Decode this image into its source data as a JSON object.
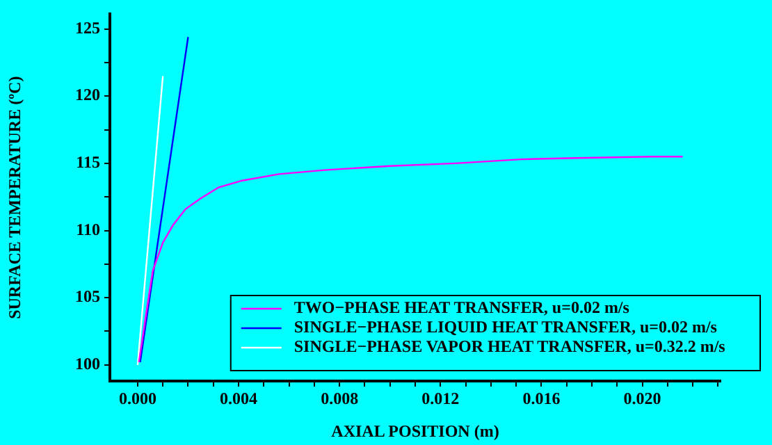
{
  "chart_data": {
    "type": "line",
    "xlabel": "AXIAL POSITION (m)",
    "ylabel": "SURFACE TEMPERATURE (ºC)",
    "xlim": [
      -0.0011,
      0.0231
    ],
    "ylim": [
      98.8,
      126.1
    ],
    "xticks": [
      {
        "value": 0,
        "label": "0.000"
      },
      {
        "value": 0.001,
        "label": null
      },
      {
        "value": 0.002,
        "label": null
      },
      {
        "value": 0.003,
        "label": null
      },
      {
        "value": 0.004,
        "label": "0.004"
      },
      {
        "value": 0.005,
        "label": null
      },
      {
        "value": 0.006,
        "label": null
      },
      {
        "value": 0.007,
        "label": null
      },
      {
        "value": 0.008,
        "label": "0.008"
      },
      {
        "value": 0.009,
        "label": null
      },
      {
        "value": 0.01,
        "label": null
      },
      {
        "value": 0.011,
        "label": null
      },
      {
        "value": 0.012,
        "label": "0.012"
      },
      {
        "value": 0.013,
        "label": null
      },
      {
        "value": 0.014,
        "label": null
      },
      {
        "value": 0.015,
        "label": null
      },
      {
        "value": 0.016,
        "label": "0.016"
      },
      {
        "value": 0.017,
        "label": null
      },
      {
        "value": 0.018,
        "label": null
      },
      {
        "value": 0.019,
        "label": null
      },
      {
        "value": 0.02,
        "label": "0.020"
      },
      {
        "value": 0.021,
        "label": null
      },
      {
        "value": 0.022,
        "label": null
      },
      {
        "value": 0.023,
        "label": null
      }
    ],
    "yticks": [
      100,
      {
        "value": 102.5,
        "label": null
      },
      105,
      {
        "value": 107.5,
        "label": null
      },
      110,
      {
        "value": 112.5,
        "label": null
      },
      115,
      {
        "value": 117.5,
        "label": null
      },
      120,
      {
        "value": 122.5,
        "label": null
      },
      125
    ],
    "grid": false,
    "legend": "bottom right",
    "marker": "none",
    "line_style": "solid",
    "series": [
      {
        "name": "TWO−PHASE HEAT TRANSFER, u=0.02 m/s",
        "color": "#ff00ff",
        "x": [
          5e-05,
          0.0004,
          0.0006,
          0.001,
          0.0014,
          0.0019,
          0.0025,
          0.0032,
          0.0041,
          0.0056,
          0.0074,
          0.01,
          0.0126,
          0.0152,
          0.0174,
          0.0204,
          0.0216
        ],
        "values": [
          100.2,
          104.6,
          107.0,
          109.1,
          110.4,
          111.6,
          112.4,
          113.2,
          113.7,
          114.2,
          114.5,
          114.8,
          115.0,
          115.3,
          115.4,
          115.5,
          115.5
        ]
      },
      {
        "name": "SINGLE−PHASE LIQUID HEAT TRANSFER, u=0.02 m/s",
        "color": "#0000ff",
        "x": [
          0.0001,
          0.002
        ],
        "values": [
          100.2,
          124.4
        ]
      },
      {
        "name": "SINGLE−PHASE VAPOR HEAT TRANSFER, u=0.32.2 m/s",
        "color": "#ffffff",
        "x": [
          0.0,
          0.001
        ],
        "values": [
          100.0,
          121.5
        ]
      }
    ]
  }
}
